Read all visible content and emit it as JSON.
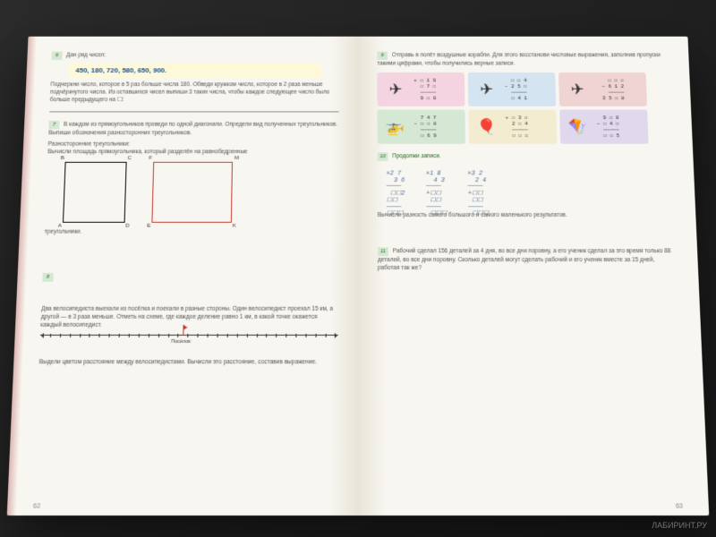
{
  "leftPage": {
    "num": "62",
    "task6": {
      "num": "6",
      "intro": "Дан ряд чисел:",
      "numbers": "450, 180, 720, 580, 650, 900.",
      "body": "Подчеркни число, которое в 5 раз больше числа 180. Обведи кружком число, которое в 2 раза меньше подчёркнутого числа. Из оставшихся чисел выпиши 3 таких числа, чтобы каждое следующее число было больше предыдущего на ☐:"
    },
    "task7": {
      "num": "7",
      "body": "В каждом из прямоугольников проведи по одной диагонали. Определи вид полученных треугольников. Выпиши обозначения разносторонних треугольников.",
      "sub1": "Разносторонние треугольники:",
      "sub2": "Вычисли площадь прямоугольника, который разделён на равнобедренные",
      "labels": {
        "B": "B",
        "C": "C",
        "F": "F",
        "M": "M",
        "A": "A",
        "D": "D",
        "E": "E",
        "K": "K"
      },
      "footer": "треугольники."
    },
    "task8": {
      "num": "8",
      "body": "Два велосипедиста выехали из посёлка и поехали в разные стороны. Один велосипедист проехал 15 км, а другой — в 3 раза меньше. Отметь на схеме, где каждое деление равно 1 км, в какой точке окажется каждый велосипедист.",
      "poselok": "Посёлок",
      "footer": "Выдели цветом расстояние между велосипедистами. Вычисли это расстояние, составив выражение."
    }
  },
  "rightPage": {
    "num": "63",
    "task9": {
      "num": "9",
      "body": "Отправь в полёт воздушные корабли. Для этого восстанови числовые выражения, заполнив пропуски такими цифрами, чтобы получились верные записи.",
      "cards": [
        {
          "cls": "c-pink",
          "icon": "✈",
          "math": "+ ☐ 1 9\n  ☐ 7 ☐\n─────\n  9 ☐ 0"
        },
        {
          "cls": "c-blue",
          "icon": "✈",
          "math": "  ☐ ☐ 4\n− 2 5 ☐\n─────\n  ☐ 4 1"
        },
        {
          "cls": "c-red",
          "icon": "✈",
          "math": "  ☐ ☐ ☐\n− 6 1 2\n─────\n  3 5 ☐ 8"
        },
        {
          "cls": "c-green",
          "icon": "🚁",
          "math": "  7 4 7\n− ☐ ☐ 8\n─────\n  ☐ 6 9"
        },
        {
          "cls": "c-yellow",
          "icon": "🎈",
          "math": "+ ☐ 3 ☐\n  2 ☐ 4\n─────\n  ☐ ☐ ☐"
        },
        {
          "cls": "c-lav",
          "icon": "🪁",
          "math": "  9 ☐ 0\n− ☐ 4 ☐\n─────\n  ☐ ☐ 5"
        }
      ]
    },
    "task10": {
      "num": "10",
      "title": "Продолжи записи.",
      "mults": [
        "×2 7\n  3 6\n────\n ☐☐2\n☐☐\n────\n☐☐☐",
        "×1 8\n  4 3\n────\n+☐☐\n ☐☐\n────\n ☐☐☐",
        "×3 2\n  2 4\n────\n+☐☐\n ☐☐\n────\n ☐☐☐"
      ],
      "footer": "Вычисли разность самого большого и самого маленького результатов."
    },
    "task11": {
      "num": "11",
      "body": "Рабочий сделал 156 деталей за 4 дня, во все дни поровну, а его ученик сделал за это время только 88 деталей, во все дни поровну. Сколько деталей могут сделать рабочий и его ученик вместе за 15 дней, работая так же?"
    }
  },
  "watermark": "ЛАБИРИНТ.РУ"
}
